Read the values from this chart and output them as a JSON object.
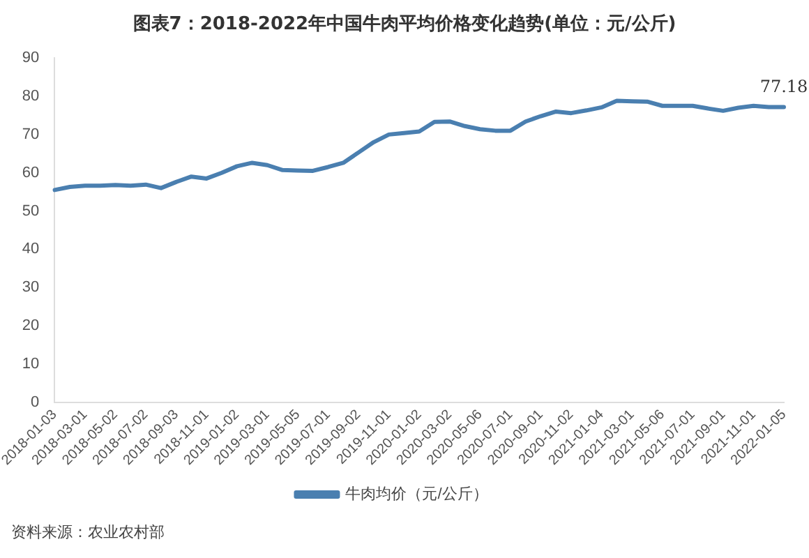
{
  "chart_data": {
    "type": "line",
    "title": "图表7：2018-2022年中国牛肉平均价格变化趋势(单位：元/公斤)",
    "categories": [
      "2018-01-03",
      null,
      "2018-03-01",
      null,
      "2018-05-02",
      null,
      "2018-07-02",
      null,
      "2018-09-03",
      null,
      "2018-11-01",
      null,
      "2019-01-02",
      null,
      "2019-03-01",
      null,
      "2019-05-05",
      null,
      "2019-07-01",
      null,
      "2019-09-02",
      null,
      "2019-11-01",
      null,
      "2020-01-02",
      null,
      "2020-03-02",
      null,
      "2020-05-06",
      null,
      "2020-07-01",
      null,
      "2020-09-01",
      null,
      "2020-11-02",
      null,
      "2021-01-04",
      null,
      "2021-03-01",
      null,
      "2021-05-06",
      null,
      "2021-07-01",
      null,
      "2021-09-01",
      null,
      "2021-11-01",
      null,
      "2022-01-05"
    ],
    "series": [
      {
        "name": "牛肉均价（元/公斤）",
        "color": "#4a7fb0",
        "values": [
          55.5,
          56.3,
          56.6,
          56.6,
          56.8,
          56.6,
          56.9,
          56,
          57.6,
          59,
          58.5,
          60,
          61.7,
          62.6,
          62,
          60.7,
          60.6,
          60.5,
          61.5,
          62.6,
          65.3,
          68,
          70,
          70.4,
          70.8,
          73.3,
          73.4,
          72.2,
          71.4,
          71,
          71,
          73.4,
          74.8,
          76,
          75.6,
          76.3,
          77.1,
          78.8,
          78.7,
          78.6,
          77.5,
          77.5,
          77.5,
          76.8,
          76.2,
          77,
          77.5,
          77.2,
          77.18
        ],
        "value_labels": [
          null,
          null,
          null,
          null,
          null,
          null,
          null,
          null,
          null,
          null,
          null,
          null,
          null,
          null,
          null,
          null,
          null,
          null,
          null,
          null,
          null,
          null,
          null,
          null,
          null,
          null,
          null,
          null,
          null,
          null,
          null,
          null,
          null,
          null,
          null,
          null,
          null,
          null,
          null,
          null,
          null,
          null,
          null,
          null,
          null,
          null,
          null,
          null,
          "77.18"
        ]
      }
    ],
    "ylim": [
      0,
      90
    ],
    "yticks": [
      0,
      10,
      20,
      30,
      40,
      50,
      60,
      70,
      80,
      90
    ],
    "grid": false,
    "legend": "bottom",
    "marker": "none",
    "line_style": "solid",
    "annotations": [
      "资料来源：农业农村部"
    ]
  }
}
